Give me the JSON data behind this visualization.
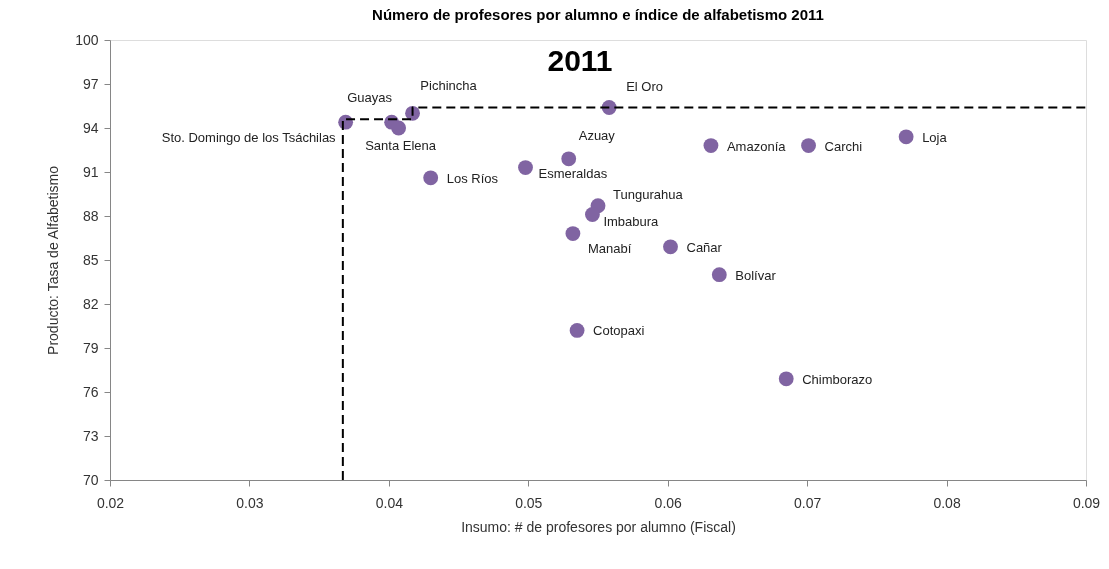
{
  "chart_data": {
    "type": "scatter",
    "title": "Número de profesores por alumno e índice de alfabetismo 2011",
    "xlabel": "Insumo: # de profesores por alumno (Fiscal)",
    "ylabel": "Producto: Tasa de Alfabetismo",
    "xlim": [
      0.02,
      0.09
    ],
    "xticks": [
      0.02,
      0.03,
      0.04,
      0.05,
      0.06,
      0.07,
      0.08,
      0.09
    ],
    "ylim": [
      70,
      100
    ],
    "yticks": [
      70,
      73,
      76,
      79,
      82,
      85,
      88,
      91,
      94,
      97,
      100
    ],
    "marker": "circle",
    "series": [
      {
        "type": "scatter",
        "color": "#8064a2",
        "x": [
          0.0369,
          0.0402,
          0.0407,
          0.0417,
          0.043,
          0.0498,
          0.0529,
          0.0558,
          0.055,
          0.0546,
          0.0532,
          0.0602,
          0.0637,
          0.0535,
          0.0631,
          0.0701,
          0.0771,
          0.0685
        ],
        "values": [
          94.4,
          94.4,
          94.0,
          95.0,
          90.6,
          91.3,
          91.9,
          95.4,
          88.7,
          88.1,
          86.8,
          85.9,
          84.0,
          80.2,
          92.8,
          92.8,
          93.4,
          76.9
        ]
      },
      {
        "type": "line",
        "color": "#000000",
        "line_style": "dashed",
        "marker": "none",
        "x": [
          0.0367,
          0.0367,
          0.0417,
          0.0417,
          0.09
        ],
        "values": [
          70,
          94.6,
          94.6,
          95.4,
          95.4
        ]
      }
    ],
    "annotations": [
      "2011",
      {
        "text": "Sto. Domingo de los Tsáchilas",
        "x": 0.0369,
        "y": 94.4
      },
      {
        "text": "Guayas",
        "x": 0.0402,
        "y": 94.4
      },
      {
        "text": "Santa Elena",
        "x": 0.0407,
        "y": 94.0
      },
      {
        "text": "Pichincha",
        "x": 0.0417,
        "y": 95.0
      },
      {
        "text": "Los Ríos",
        "x": 0.043,
        "y": 90.6
      },
      {
        "text": "Esmeraldas",
        "x": 0.0498,
        "y": 91.3
      },
      {
        "text": "Azuay",
        "x": 0.0529,
        "y": 91.9
      },
      {
        "text": "El Oro",
        "x": 0.0558,
        "y": 95.4
      },
      {
        "text": "Tungurahua",
        "x": 0.055,
        "y": 88.7
      },
      {
        "text": "Imbabura",
        "x": 0.0546,
        "y": 88.1
      },
      {
        "text": "Manabí",
        "x": 0.0532,
        "y": 86.8
      },
      {
        "text": "Cañar",
        "x": 0.0602,
        "y": 85.9
      },
      {
        "text": "Bolívar",
        "x": 0.0637,
        "y": 84.0
      },
      {
        "text": "Cotopaxi",
        "x": 0.0535,
        "y": 80.2
      },
      {
        "text": "Amazonía",
        "x": 0.0631,
        "y": 92.8
      },
      {
        "text": "Carchi",
        "x": 0.0701,
        "y": 92.8
      },
      {
        "text": "Loja",
        "x": 0.0771,
        "y": 93.4
      },
      {
        "text": "Chimborazo",
        "x": 0.0685,
        "y": 76.9
      }
    ]
  }
}
